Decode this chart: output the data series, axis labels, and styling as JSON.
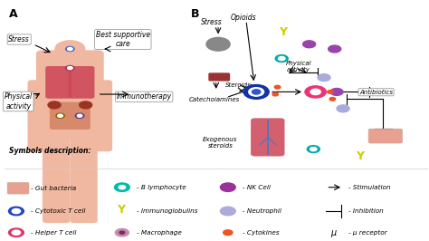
{
  "bg_color": "#ffffff",
  "panel_a_label": "A",
  "panel_b_label": "B",
  "symbols_title": "Symbols description:",
  "panel_a_labels": {
    "stress": "Stress",
    "physical_activity": "Physical\nactivity",
    "best_supportive": "Best supportive\ncare",
    "immunotherapy": "Immunotherapy"
  },
  "panel_b_labels": {
    "stress": "Stress",
    "opioids": "Opioids",
    "catecholamines": "Catecholamines",
    "steroids": "Steroids",
    "exogenous_steroids": "Exogenous\nsteroids",
    "physical_activity": "Physical\nactivity",
    "antibiotics": "Antibiotics"
  },
  "body_color": "#f0b8a0",
  "lung_color": "#cc4455",
  "gut_color": "#cc7755",
  "brain_color": "#888888",
  "kidney_color": "#993333",
  "center_cell_color": "#1133aa",
  "pink_cell_color": "#ee3377",
  "teal_color": "#00aaaa",
  "purple_color": "#9944aa",
  "neutrophil_color": "#aaaadd",
  "cytokine_color": "#ee5522",
  "gut_bacteria_color": "#e8a090",
  "immuno_color": "#cccc00",
  "nk_color": "#993399",
  "b_lymph_color": "#00bbaa",
  "helper_color": "#dd3366",
  "cytotoxic_color": "#2244bb",
  "macro_color": "#cc88aa",
  "macro_dot_color": "#663366"
}
